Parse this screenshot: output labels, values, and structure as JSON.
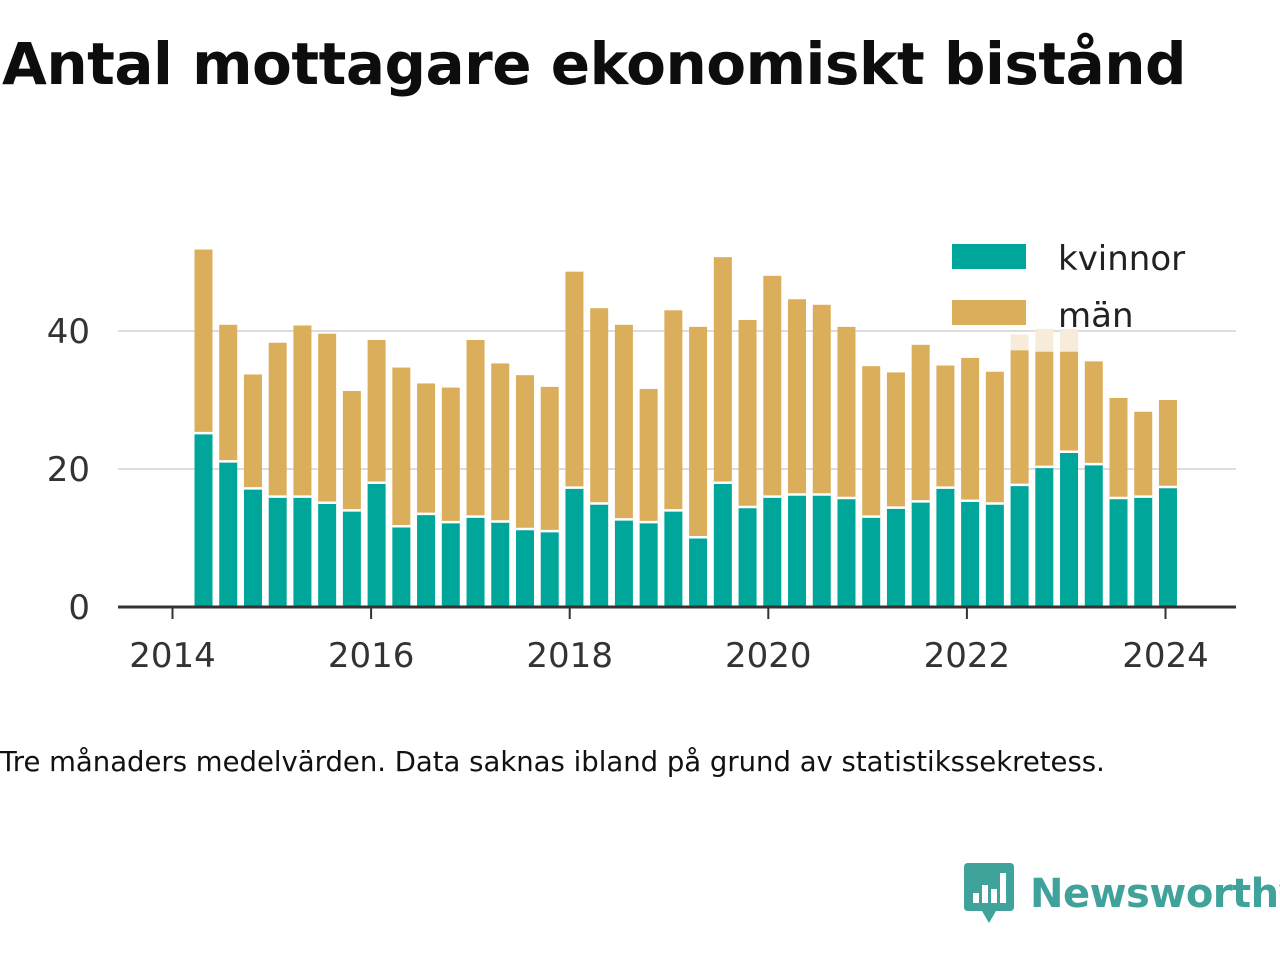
{
  "title": "Antal mottagare ekonomiskt bistånd",
  "note": "Tre månaders medelvärden. Data saknas ibland på grund av statistikssekretess.",
  "brand": {
    "name": "Newsworthy",
    "icon": "newsworthy-logo-icon",
    "color": "#3fa39b"
  },
  "colors": {
    "kvinnor": "#00a69a",
    "man": "#dbae5c",
    "gap": "#f7ecda",
    "grid": "#dddddd",
    "axis": "#333333"
  },
  "chart_data": {
    "type": "bar",
    "stacked": true,
    "title": "Antal mottagare ekonomiskt bistånd",
    "xlabel": "",
    "ylabel": "",
    "x_ticks": [
      "2014",
      "2016",
      "2018",
      "2020",
      "2022",
      "2024"
    ],
    "y_ticks": [
      0,
      20,
      40
    ],
    "ylim": [
      0,
      53
    ],
    "legend_position": "top-right",
    "grid": "horizontal",
    "x": [
      "2014-05",
      "2014-08",
      "2014-11",
      "2015-02",
      "2015-05",
      "2015-08",
      "2015-11",
      "2016-02",
      "2016-05",
      "2016-08",
      "2016-11",
      "2017-02",
      "2017-05",
      "2017-08",
      "2017-11",
      "2018-02",
      "2018-05",
      "2018-08",
      "2018-11",
      "2019-02",
      "2019-05",
      "2019-08",
      "2019-11",
      "2020-02",
      "2020-05",
      "2020-08",
      "2020-11",
      "2021-02",
      "2021-05",
      "2021-08",
      "2021-11",
      "2022-02",
      "2022-05",
      "2022-08",
      "2022-11",
      "2023-02",
      "2023-05",
      "2023-08",
      "2023-11",
      "2024-02"
    ],
    "series": [
      {
        "name": "kvinnor",
        "values": [
          25.2,
          21.1,
          17.2,
          16.0,
          16.0,
          15.1,
          14.0,
          18.0,
          11.7,
          13.5,
          12.3,
          13.1,
          12.4,
          11.3,
          11.0,
          17.3,
          15.0,
          12.7,
          12.3,
          14.0,
          10.1,
          18.0,
          14.5,
          16.0,
          16.3,
          16.3,
          15.8,
          13.1,
          14.4,
          15.3,
          17.3,
          15.4,
          15.0,
          17.7,
          20.3,
          22.5,
          20.7,
          15.8,
          16.0,
          17.4
        ]
      },
      {
        "name": "män",
        "values": [
          26.6,
          19.8,
          16.5,
          22.3,
          24.8,
          24.5,
          17.3,
          20.7,
          23.0,
          18.9,
          19.5,
          25.6,
          22.9,
          22.3,
          20.9,
          31.3,
          28.3,
          28.2,
          19.3,
          29.0,
          30.5,
          32.7,
          27.1,
          32.0,
          28.3,
          27.5,
          24.8,
          21.8,
          19.6,
          22.7,
          17.7,
          20.7,
          19.1,
          19.5,
          16.7,
          14.5,
          14.9,
          14.5,
          12.3,
          12.6
        ]
      }
    ],
    "missing_marker_at": [
      "2022-08",
      "2022-11",
      "2023-02"
    ],
    "missing_marker_top": [
      39.5,
      40.3,
      40.3
    ]
  }
}
